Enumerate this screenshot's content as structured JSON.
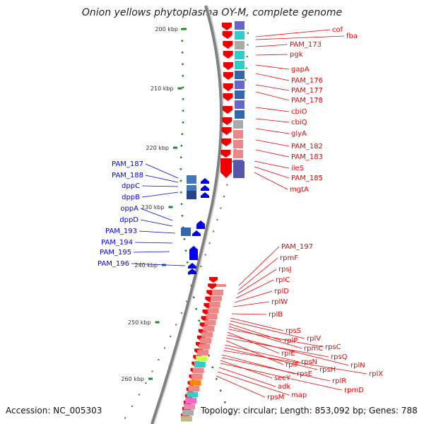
{
  "header": {
    "title": "Onion yellows phytoplasma OY-M, complete genome"
  },
  "footer": {
    "accession": "Accession: NC_005303",
    "summary": "Topology: circular; Length: 853,092 bp; Genes: 788"
  },
  "colors": {
    "forward": "#ee0000",
    "reverse": "#0000ee",
    "ruler": "#228822",
    "backbone": "#808080"
  },
  "kbp_ticks": [
    "200 kbp",
    "210 kbp",
    "220 kbp",
    "230 kbp",
    "240 kbp",
    "250 kbp",
    "260 kbp"
  ],
  "genes_forward": [
    "cof",
    "fba",
    "PAM_173",
    "pgk",
    "gapA",
    "PAM_176",
    "PAM_177",
    "PAM_178",
    "cbiO",
    "cbiQ",
    "glyA",
    "PAM_182",
    "PAM_183",
    "ileS",
    "PAM_185",
    "mgtA"
  ],
  "genes_reverse": [
    "PAM_187",
    "PAM_188",
    "dppC",
    "dppB",
    "oppA",
    "dppD",
    "PAM_193",
    "PAM_194",
    "PAM_195",
    "PAM_196"
  ],
  "genes_ribosomal": [
    "PAM_197",
    "rpmF",
    "rpsJ",
    "rplC",
    "rplD",
    "rplW",
    "rplB",
    "rpsS",
    "rplV",
    "rplP",
    "rpmC",
    "rpsC",
    "rplE",
    "rplN",
    "rpsQ",
    "rplF",
    "rpsN",
    "rpsH",
    "rplX",
    "rpsE",
    "rplR",
    "secY",
    "rpmD",
    "adk",
    "map",
    "rpsM"
  ]
}
